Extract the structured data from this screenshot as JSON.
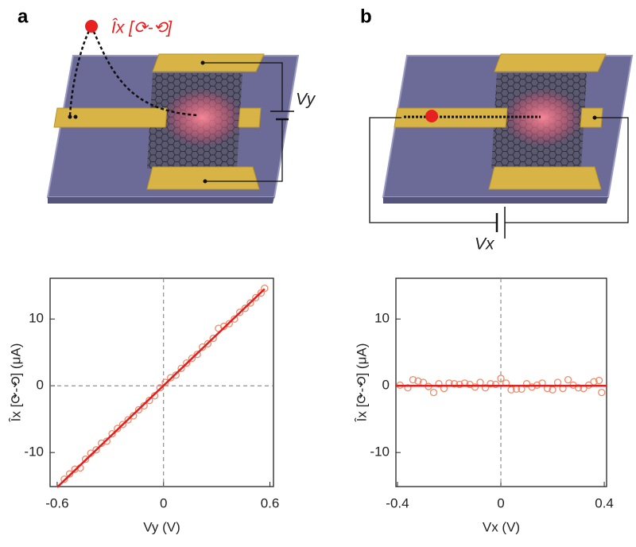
{
  "panels": [
    {
      "label": "a",
      "annotation": "Îx [⟳-⟲]",
      "voltage": "Vy"
    },
    {
      "label": "b",
      "voltage": "Vx"
    }
  ],
  "chart_data": [
    {
      "type": "scatter",
      "xlabel": "Vy (V)",
      "ylabel": "Îx [⟳-⟲] (μA)",
      "xlim": [
        -0.64,
        0.62
      ],
      "ylim": [
        -15.1,
        16.1
      ],
      "xticks": [
        -0.6,
        0,
        0.6
      ],
      "yticks": [
        -10,
        0,
        10
      ],
      "zero_lines": true,
      "series": [
        {
          "mode": "markers",
          "color": "#f08a6a",
          "x": [
            -0.56,
            -0.53,
            -0.5,
            -0.47,
            -0.44,
            -0.41,
            -0.38,
            -0.35,
            -0.32,
            -0.29,
            -0.26,
            -0.23,
            -0.2,
            -0.17,
            -0.14,
            -0.11,
            -0.08,
            -0.05,
            -0.02,
            0.01,
            0.04,
            0.07,
            0.1,
            0.13,
            0.16,
            0.19,
            0.22,
            0.25,
            0.28,
            0.31,
            0.34,
            0.37,
            0.4,
            0.43,
            0.46,
            0.49,
            0.52,
            0.55,
            0.57
          ],
          "values": [
            -14.0,
            -13.2,
            -12.5,
            -12.3,
            -11.0,
            -10.1,
            -9.6,
            -8.6,
            -8.3,
            -7.2,
            -6.4,
            -5.8,
            -5.1,
            -4.5,
            -3.6,
            -3.0,
            -2.2,
            -1.5,
            -0.3,
            0.5,
            1.2,
            1.6,
            2.6,
            3.4,
            4.1,
            4.7,
            5.8,
            6.3,
            7.1,
            8.6,
            8.9,
            9.3,
            10.0,
            11.0,
            11.6,
            12.4,
            13.2,
            13.9,
            14.6
          ]
        },
        {
          "mode": "line",
          "color": "#e02020",
          "x": [
            -0.6,
            0.57
          ],
          "values": [
            -15.2,
            14.5
          ]
        }
      ]
    },
    {
      "type": "scatter",
      "xlabel": "Vx (V)",
      "ylabel": "Îx [⟳-⟲] (μA)",
      "xlim": [
        -0.406,
        0.409
      ],
      "ylim": [
        -15.1,
        16.1
      ],
      "xticks": [
        -0.4,
        0,
        0.4
      ],
      "yticks": [
        -10,
        0,
        10
      ],
      "zero_lines": true,
      "series": [
        {
          "mode": "markers",
          "color": "#f08a6a",
          "x": [
            -0.39,
            -0.36,
            -0.34,
            -0.32,
            -0.3,
            -0.28,
            -0.26,
            -0.24,
            -0.22,
            -0.2,
            -0.18,
            -0.16,
            -0.14,
            -0.12,
            -0.1,
            -0.08,
            -0.06,
            -0.04,
            -0.02,
            0.0,
            0.02,
            0.04,
            0.06,
            0.08,
            0.1,
            0.12,
            0.14,
            0.16,
            0.18,
            0.2,
            0.22,
            0.24,
            0.26,
            0.28,
            0.3,
            0.32,
            0.34,
            0.36,
            0.38,
            0.39
          ],
          "values": [
            0.1,
            -0.3,
            0.9,
            0.7,
            0.5,
            -0.1,
            -1.0,
            0.3,
            -0.4,
            0.4,
            0.3,
            0.2,
            0.4,
            0.2,
            -0.2,
            0.5,
            -0.3,
            0.3,
            0.2,
            1.1,
            0.4,
            -0.6,
            -0.5,
            -0.5,
            0.3,
            -0.2,
            0.1,
            0.4,
            -0.4,
            -0.6,
            0.5,
            -0.4,
            0.9,
            0.1,
            -0.3,
            -0.4,
            0.1,
            0.6,
            0.8,
            -1.0
          ]
        },
        {
          "mode": "line",
          "color": "#e02020",
          "x": [
            -0.406,
            0.409
          ],
          "values": [
            0,
            0
          ]
        }
      ]
    }
  ]
}
